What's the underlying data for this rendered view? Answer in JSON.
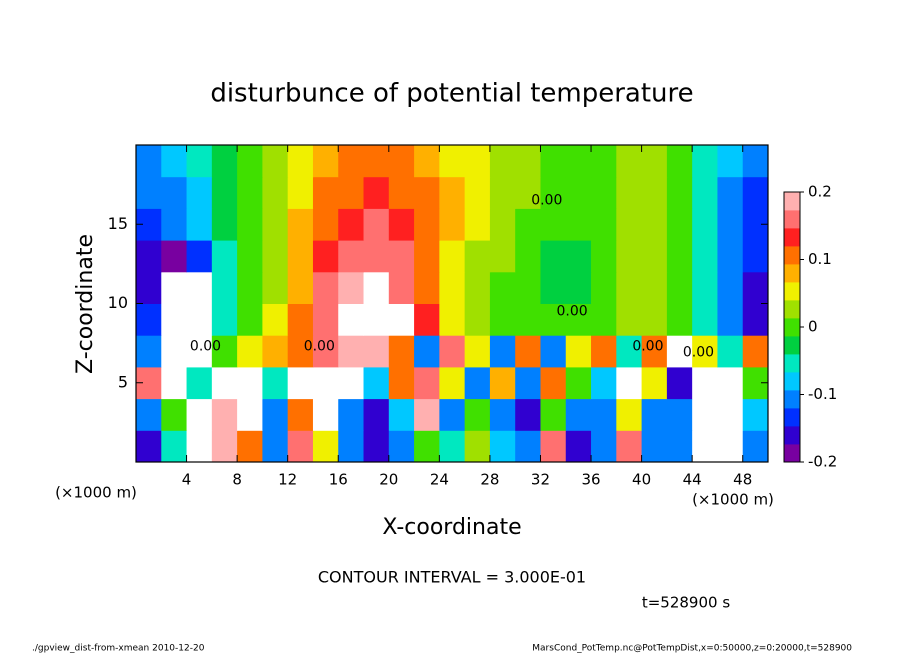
{
  "chart_data": {
    "type": "contour",
    "title": "disturbunce of potential temperature",
    "x_label": "X-coordinate",
    "y_label": "Z-coordinate",
    "x_unit": "(×1000 m)",
    "y_unit": "(×1000 m)",
    "xlim": [
      0,
      50
    ],
    "ylim": [
      0,
      20
    ],
    "xticks": [
      4,
      8,
      12,
      16,
      20,
      24,
      28,
      32,
      36,
      40,
      44,
      48
    ],
    "yticks": [
      5,
      10,
      15
    ],
    "x": [
      1,
      3,
      5,
      7,
      9,
      11,
      13,
      15,
      17,
      19,
      21,
      23,
      25,
      27,
      29,
      31,
      33,
      35,
      37,
      39,
      41,
      43,
      45,
      47,
      49
    ],
    "y": [
      1,
      3,
      5,
      7,
      9,
      11,
      13,
      15,
      17,
      19
    ],
    "z": [
      [
        -0.15,
        -0.05,
        0.3,
        0.2,
        0.1,
        -0.1,
        0.15,
        0.05,
        -0.12,
        -0.15,
        -0.1,
        0.0,
        -0.05,
        0.02,
        -0.08,
        -0.12,
        0.15,
        -0.15,
        -0.1,
        0.15,
        -0.1,
        -0.12,
        0.3,
        0.3,
        -0.1
      ],
      [
        -0.1,
        0.0,
        0.3,
        0.2,
        0.3,
        -0.1,
        0.1,
        0.3,
        -0.12,
        -0.15,
        -0.08,
        0.2,
        -0.1,
        0.0,
        -0.1,
        -0.15,
        0.0,
        -0.1,
        -0.1,
        0.05,
        -0.12,
        -0.1,
        0.3,
        0.3,
        -0.08
      ],
      [
        0.15,
        0.3,
        -0.05,
        0.3,
        0.3,
        -0.05,
        0.3,
        0.3,
        0.3,
        -0.08,
        0.1,
        0.15,
        0.05,
        -0.1,
        0.08,
        -0.12,
        0.1,
        0.0,
        -0.08,
        0.3,
        0.05,
        -0.15,
        0.3,
        0.3,
        0.0
      ],
      [
        -0.1,
        0.3,
        0.3,
        0.0,
        0.05,
        0.08,
        0.1,
        0.15,
        0.2,
        0.18,
        0.1,
        -0.1,
        0.15,
        0.05,
        -0.12,
        0.1,
        -0.1,
        0.05,
        0.1,
        -0.05,
        0.1,
        0.3,
        0.05,
        -0.05,
        0.1
      ],
      [
        -0.14,
        -0.3,
        -0.3,
        -0.05,
        0.0,
        0.04,
        0.1,
        0.17,
        0.3,
        0.3,
        0.3,
        0.13,
        0.06,
        0.03,
        0.01,
        0.0,
        -0.01,
        -0.01,
        0.0,
        0.02,
        0.02,
        0.0,
        -0.06,
        -0.12,
        -0.15
      ],
      [
        -0.16,
        -0.3,
        -0.3,
        -0.05,
        0.0,
        0.03,
        0.09,
        0.15,
        0.19,
        0.3,
        0.17,
        0.12,
        0.06,
        0.03,
        0.01,
        0.0,
        -0.02,
        -0.02,
        0.0,
        0.02,
        0.03,
        0.01,
        -0.05,
        -0.11,
        -0.15
      ],
      [
        -0.15,
        -0.18,
        -0.14,
        -0.04,
        0.0,
        0.03,
        0.08,
        0.13,
        0.16,
        0.17,
        0.15,
        0.11,
        0.06,
        0.03,
        0.02,
        0.0,
        -0.02,
        -0.02,
        0.0,
        0.02,
        0.03,
        0.01,
        -0.04,
        -0.1,
        -0.14
      ],
      [
        -0.13,
        -0.11,
        -0.08,
        -0.03,
        0.0,
        0.03,
        0.07,
        0.11,
        0.14,
        0.15,
        0.14,
        0.11,
        0.07,
        0.04,
        0.02,
        0.0,
        -0.01,
        -0.01,
        0.0,
        0.02,
        0.03,
        0.01,
        -0.04,
        -0.1,
        -0.13
      ],
      [
        -0.12,
        -0.1,
        -0.07,
        -0.03,
        0.0,
        0.02,
        0.06,
        0.1,
        0.12,
        0.13,
        0.12,
        0.1,
        0.07,
        0.04,
        0.03,
        0.02,
        0.01,
        0.0,
        0.01,
        0.02,
        0.03,
        0.0,
        -0.05,
        -0.1,
        -0.13
      ],
      [
        -0.12,
        -0.09,
        -0.06,
        -0.03,
        0.0,
        0.02,
        0.05,
        0.08,
        0.1,
        0.11,
        0.1,
        0.08,
        0.06,
        0.04,
        0.03,
        0.02,
        0.01,
        0.0,
        0.01,
        0.02,
        0.03,
        0.0,
        -0.05,
        -0.09,
        -0.12
      ]
    ],
    "zlim": [
      -0.2,
      0.2
    ],
    "colorbar_ticks": [
      -0.2,
      -0.1,
      0,
      0.1,
      0.2
    ],
    "colorscale": [
      "#7800a0",
      "#3000d0",
      "#0030ff",
      "#0080ff",
      "#00c8ff",
      "#00e8c0",
      "#00d040",
      "#40e000",
      "#a0e000",
      "#f0f000",
      "#ffb000",
      "#ff7000",
      "#ff2020",
      "#ff7070",
      "#ffb0b0"
    ],
    "out_of_range_color": "#ffffff",
    "contour_labels": [
      {
        "text": "0.00",
        "x": 5.5,
        "y": 7.3
      },
      {
        "text": "0.00",
        "x": 14.5,
        "y": 7.3
      },
      {
        "text": "0.00",
        "x": 40.5,
        "y": 7.3
      },
      {
        "text": "0.00",
        "x": 44.5,
        "y": 6.9
      },
      {
        "text": "0.00",
        "x": 34.5,
        "y": 9.5
      },
      {
        "text": "0.00",
        "x": 32.5,
        "y": 16.5
      }
    ],
    "contour_interval": "CONTOUR INTERVAL = 3.000E-01",
    "time_label": "t=528900 s",
    "footer_left": "./gpview_dist-from-xmean  2010-12-20",
    "footer_right": "MarsCond_PotTemp.nc@PotTempDist,x=0:50000,z=0:20000,t=528900"
  }
}
